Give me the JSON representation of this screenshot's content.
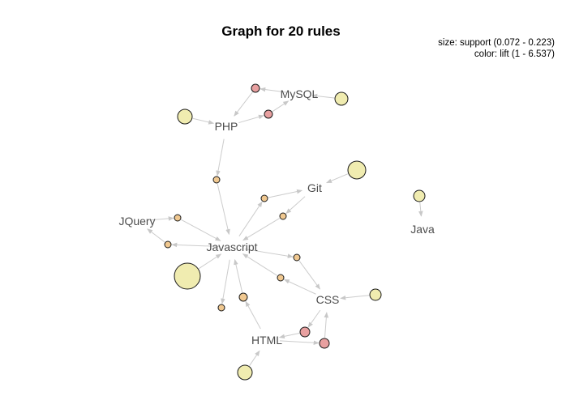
{
  "title": "Graph for 20 rules",
  "legend": {
    "size": "size: support (0.072 - 0.223)",
    "color": "color: lift (1 - 6.537)"
  },
  "items": [
    {
      "id": "mysql",
      "label": "MySQL"
    },
    {
      "id": "php",
      "label": "PHP"
    },
    {
      "id": "git",
      "label": "Git"
    },
    {
      "id": "jquery",
      "label": "JQuery"
    },
    {
      "id": "javascript",
      "label": "Javascript"
    },
    {
      "id": "java",
      "label": "Java"
    },
    {
      "id": "css",
      "label": "CSS"
    },
    {
      "id": "html",
      "label": "HTML"
    }
  ],
  "colors": {
    "pink": "#e8a0a0",
    "orange": "#f0c890",
    "yellow": "#f0ecb0",
    "edge": "#cccccc",
    "node_stroke": "#1a1a1a"
  }
}
